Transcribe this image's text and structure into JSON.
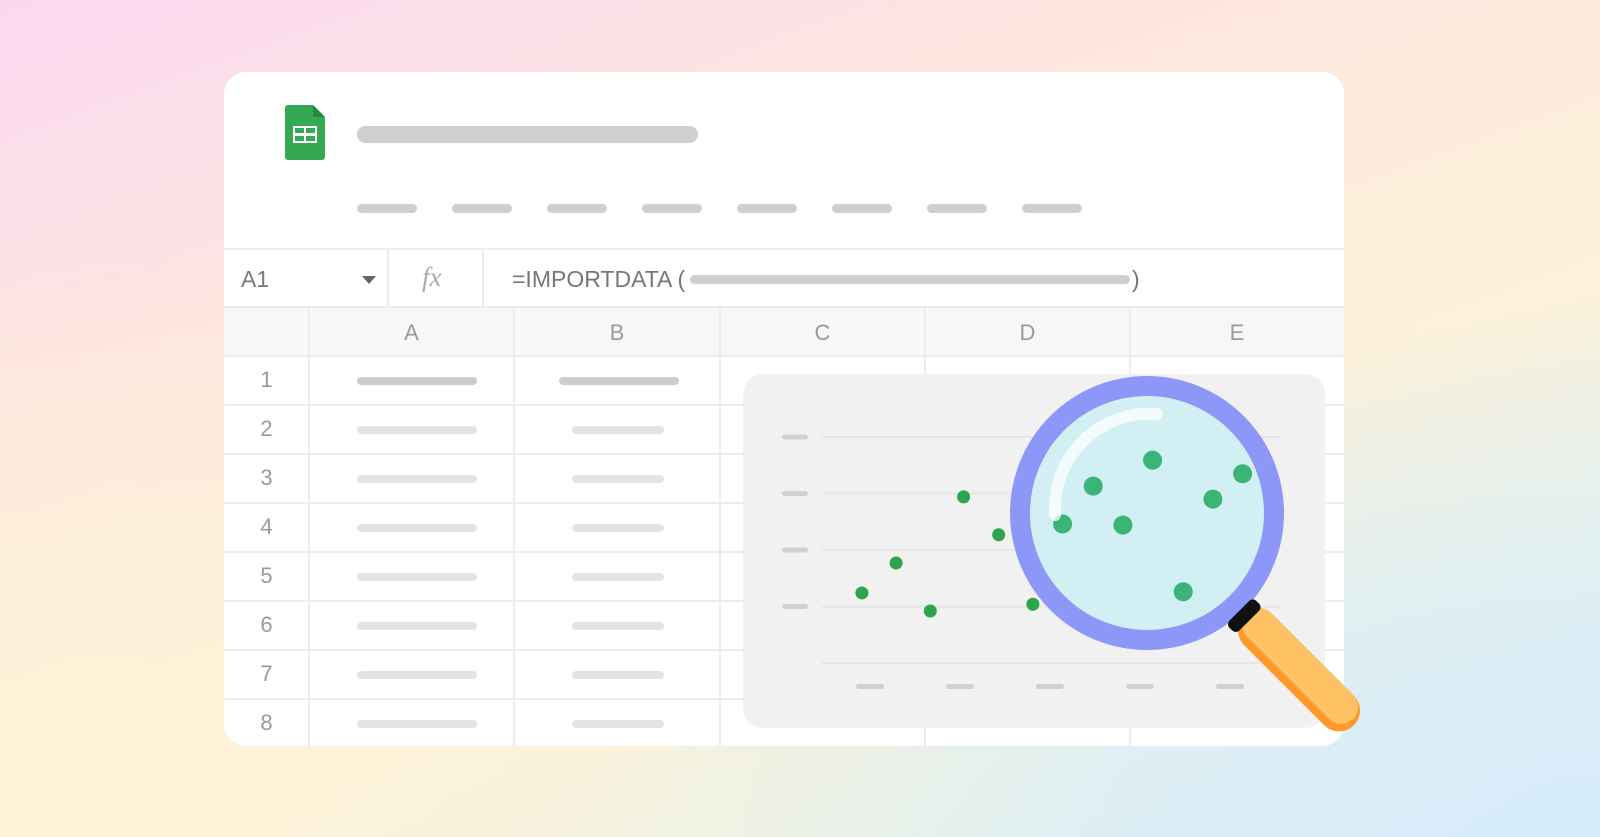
{
  "app": {
    "logo_icon": "google-sheets-logo",
    "brand_color": "#34a853",
    "menu_count": 8
  },
  "formula_bar": {
    "cell_ref": "A1",
    "fx_label": "fx",
    "formula_prefix": "=IMPORTDATA (",
    "formula_suffix": ")"
  },
  "grid": {
    "columns": [
      "A",
      "B",
      "C",
      "D",
      "E"
    ],
    "rows": [
      "1",
      "2",
      "3",
      "4",
      "5",
      "6",
      "7",
      "8"
    ]
  },
  "chart_data": {
    "type": "scatter",
    "title": "",
    "xlabel": "",
    "ylabel": "",
    "xlim": [
      0,
      5.5
    ],
    "ylim": [
      0,
      4
    ],
    "grid": true,
    "point_color": "#2ea44f",
    "points": [
      [
        0.91,
        1.24
      ],
      [
        1.29,
        1.77
      ],
      [
        1.67,
        0.92
      ],
      [
        2.04,
        2.94
      ],
      [
        2.43,
        2.27
      ],
      [
        2.81,
        1.04
      ],
      [
        3.14,
        2.46
      ],
      [
        3.48,
        3.13
      ],
      [
        3.81,
        2.44
      ],
      [
        4.14,
        3.59
      ],
      [
        4.48,
        1.26
      ],
      [
        4.81,
        2.9
      ],
      [
        5.14,
        3.35
      ]
    ]
  },
  "magnifier": {
    "icon": "magnifying-glass-icon",
    "ring_color": "#8c97f8",
    "lens_color": "#d2eff3",
    "handle_color": "#fec265"
  }
}
